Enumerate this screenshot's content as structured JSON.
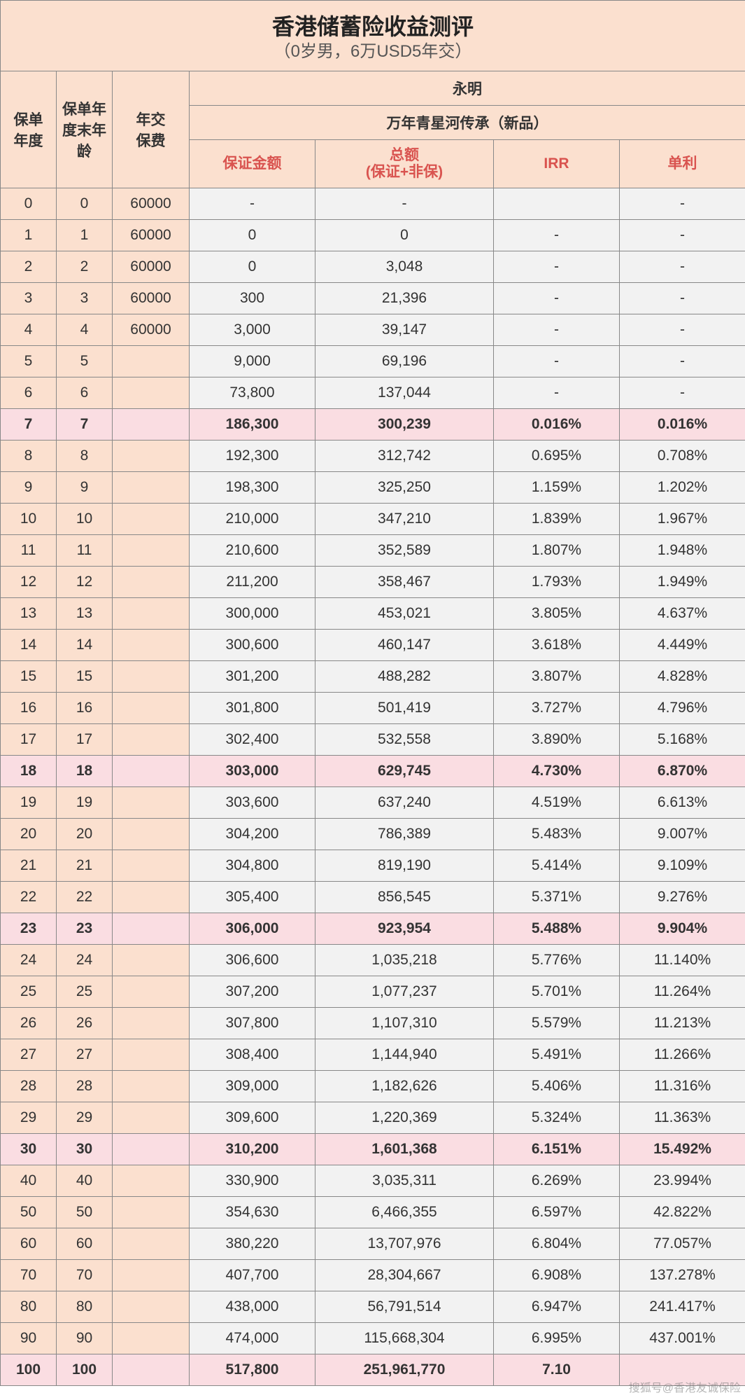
{
  "title": {
    "main": "香港储蓄险收益测评",
    "sub": "（0岁男，6万USD5年交）"
  },
  "header": {
    "col_year": "保单\n年度",
    "col_age": "保单年\n度末年\n龄",
    "col_prem": "年交\n保费",
    "company": "永明",
    "product": "万年青星河传承（新品）",
    "col_guarantee": "保证金额",
    "col_total_l1": "总额",
    "col_total_l2": "(保证+非保)",
    "col_irr": "IRR",
    "col_simple": "单利"
  },
  "colors": {
    "peach": "#fbe0cf",
    "grey": "#f2f2f2",
    "pink": "#fadde2",
    "red_text": "#d9534f",
    "border": "#888888"
  },
  "watermark": "搜狐号@香港友诚保险",
  "rows": [
    {
      "y": "0",
      "a": "0",
      "p": "60000",
      "g": "-",
      "t": "-",
      "i": "",
      "s": "-",
      "hl": false
    },
    {
      "y": "1",
      "a": "1",
      "p": "60000",
      "g": "0",
      "t": "0",
      "i": "-",
      "s": "-",
      "hl": false
    },
    {
      "y": "2",
      "a": "2",
      "p": "60000",
      "g": "0",
      "t": "3,048",
      "i": "-",
      "s": "-",
      "hl": false
    },
    {
      "y": "3",
      "a": "3",
      "p": "60000",
      "g": "300",
      "t": "21,396",
      "i": "-",
      "s": "-",
      "hl": false
    },
    {
      "y": "4",
      "a": "4",
      "p": "60000",
      "g": "3,000",
      "t": "39,147",
      "i": "-",
      "s": "-",
      "hl": false
    },
    {
      "y": "5",
      "a": "5",
      "p": "",
      "g": "9,000",
      "t": "69,196",
      "i": "-",
      "s": "-",
      "hl": false
    },
    {
      "y": "6",
      "a": "6",
      "p": "",
      "g": "73,800",
      "t": "137,044",
      "i": "-",
      "s": "-",
      "hl": false
    },
    {
      "y": "7",
      "a": "7",
      "p": "",
      "g": "186,300",
      "t": "300,239",
      "i": "0.016%",
      "s": "0.016%",
      "hl": true
    },
    {
      "y": "8",
      "a": "8",
      "p": "",
      "g": "192,300",
      "t": "312,742",
      "i": "0.695%",
      "s": "0.708%",
      "hl": false
    },
    {
      "y": "9",
      "a": "9",
      "p": "",
      "g": "198,300",
      "t": "325,250",
      "i": "1.159%",
      "s": "1.202%",
      "hl": false
    },
    {
      "y": "10",
      "a": "10",
      "p": "",
      "g": "210,000",
      "t": "347,210",
      "i": "1.839%",
      "s": "1.967%",
      "hl": false
    },
    {
      "y": "11",
      "a": "11",
      "p": "",
      "g": "210,600",
      "t": "352,589",
      "i": "1.807%",
      "s": "1.948%",
      "hl": false
    },
    {
      "y": "12",
      "a": "12",
      "p": "",
      "g": "211,200",
      "t": "358,467",
      "i": "1.793%",
      "s": "1.949%",
      "hl": false
    },
    {
      "y": "13",
      "a": "13",
      "p": "",
      "g": "300,000",
      "t": "453,021",
      "i": "3.805%",
      "s": "4.637%",
      "hl": false
    },
    {
      "y": "14",
      "a": "14",
      "p": "",
      "g": "300,600",
      "t": "460,147",
      "i": "3.618%",
      "s": "4.449%",
      "hl": false
    },
    {
      "y": "15",
      "a": "15",
      "p": "",
      "g": "301,200",
      "t": "488,282",
      "i": "3.807%",
      "s": "4.828%",
      "hl": false
    },
    {
      "y": "16",
      "a": "16",
      "p": "",
      "g": "301,800",
      "t": "501,419",
      "i": "3.727%",
      "s": "4.796%",
      "hl": false
    },
    {
      "y": "17",
      "a": "17",
      "p": "",
      "g": "302,400",
      "t": "532,558",
      "i": "3.890%",
      "s": "5.168%",
      "hl": false
    },
    {
      "y": "18",
      "a": "18",
      "p": "",
      "g": "303,000",
      "t": "629,745",
      "i": "4.730%",
      "s": "6.870%",
      "hl": true
    },
    {
      "y": "19",
      "a": "19",
      "p": "",
      "g": "303,600",
      "t": "637,240",
      "i": "4.519%",
      "s": "6.613%",
      "hl": false
    },
    {
      "y": "20",
      "a": "20",
      "p": "",
      "g": "304,200",
      "t": "786,389",
      "i": "5.483%",
      "s": "9.007%",
      "hl": false
    },
    {
      "y": "21",
      "a": "21",
      "p": "",
      "g": "304,800",
      "t": "819,190",
      "i": "5.414%",
      "s": "9.109%",
      "hl": false
    },
    {
      "y": "22",
      "a": "22",
      "p": "",
      "g": "305,400",
      "t": "856,545",
      "i": "5.371%",
      "s": "9.276%",
      "hl": false
    },
    {
      "y": "23",
      "a": "23",
      "p": "",
      "g": "306,000",
      "t": "923,954",
      "i": "5.488%",
      "s": "9.904%",
      "hl": true
    },
    {
      "y": "24",
      "a": "24",
      "p": "",
      "g": "306,600",
      "t": "1,035,218",
      "i": "5.776%",
      "s": "11.140%",
      "hl": false
    },
    {
      "y": "25",
      "a": "25",
      "p": "",
      "g": "307,200",
      "t": "1,077,237",
      "i": "5.701%",
      "s": "11.264%",
      "hl": false
    },
    {
      "y": "26",
      "a": "26",
      "p": "",
      "g": "307,800",
      "t": "1,107,310",
      "i": "5.579%",
      "s": "11.213%",
      "hl": false
    },
    {
      "y": "27",
      "a": "27",
      "p": "",
      "g": "308,400",
      "t": "1,144,940",
      "i": "5.491%",
      "s": "11.266%",
      "hl": false
    },
    {
      "y": "28",
      "a": "28",
      "p": "",
      "g": "309,000",
      "t": "1,182,626",
      "i": "5.406%",
      "s": "11.316%",
      "hl": false
    },
    {
      "y": "29",
      "a": "29",
      "p": "",
      "g": "309,600",
      "t": "1,220,369",
      "i": "5.324%",
      "s": "11.363%",
      "hl": false
    },
    {
      "y": "30",
      "a": "30",
      "p": "",
      "g": "310,200",
      "t": "1,601,368",
      "i": "6.151%",
      "s": "15.492%",
      "hl": true
    },
    {
      "y": "40",
      "a": "40",
      "p": "",
      "g": "330,900",
      "t": "3,035,311",
      "i": "6.269%",
      "s": "23.994%",
      "hl": false
    },
    {
      "y": "50",
      "a": "50",
      "p": "",
      "g": "354,630",
      "t": "6,466,355",
      "i": "6.597%",
      "s": "42.822%",
      "hl": false
    },
    {
      "y": "60",
      "a": "60",
      "p": "",
      "g": "380,220",
      "t": "13,707,976",
      "i": "6.804%",
      "s": "77.057%",
      "hl": false
    },
    {
      "y": "70",
      "a": "70",
      "p": "",
      "g": "407,700",
      "t": "28,304,667",
      "i": "6.908%",
      "s": "137.278%",
      "hl": false
    },
    {
      "y": "80",
      "a": "80",
      "p": "",
      "g": "438,000",
      "t": "56,791,514",
      "i": "6.947%",
      "s": "241.417%",
      "hl": false
    },
    {
      "y": "90",
      "a": "90",
      "p": "",
      "g": "474,000",
      "t": "115,668,304",
      "i": "6.995%",
      "s": "437.001%",
      "hl": false
    },
    {
      "y": "100",
      "a": "100",
      "p": "",
      "g": "517,800",
      "t": "251,961,770",
      "i": "7.10",
      "s": "",
      "hl": true
    }
  ]
}
